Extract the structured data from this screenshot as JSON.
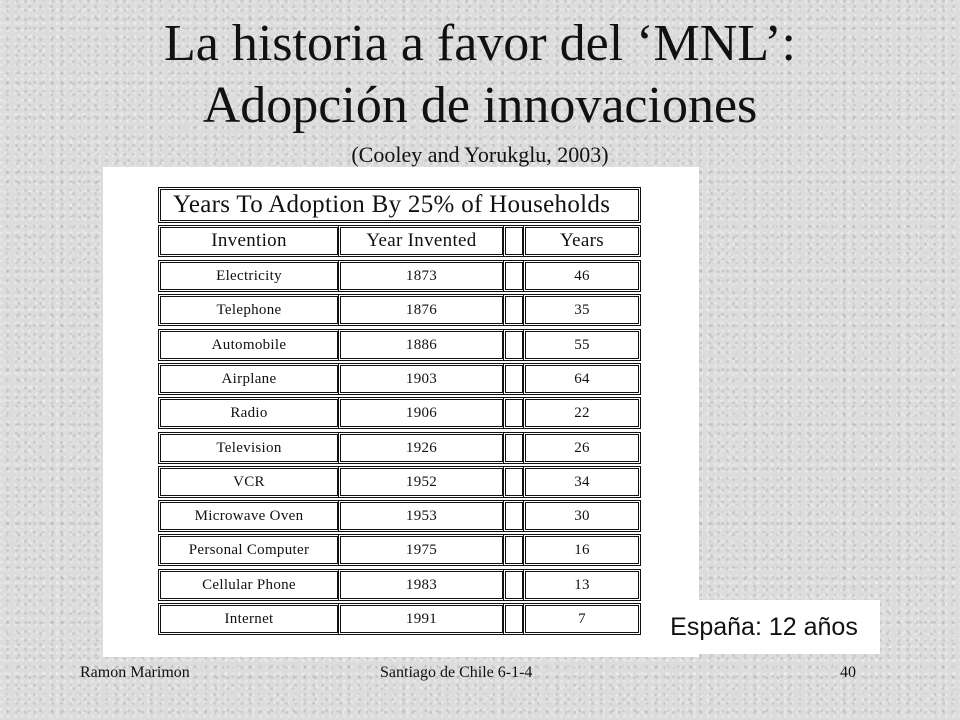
{
  "slide": {
    "title_line1": "La historia a favor del ‘MNL’:",
    "title_line2": "Adopción de  innovaciones",
    "subtitle": "(Cooley and Yorukglu, 2003)",
    "callout": "España: 12 años"
  },
  "table": {
    "title": "Years To Adoption By 25% of Households",
    "headers": [
      "Invention",
      "Year  Invented",
      "",
      "Years"
    ],
    "rows": [
      {
        "invention": "Electricity",
        "year": "1873",
        "years": "46"
      },
      {
        "invention": "Telephone",
        "year": "1876",
        "years": "35"
      },
      {
        "invention": "Automobile",
        "year": "1886",
        "years": "55"
      },
      {
        "invention": "Airplane",
        "year": "1903",
        "years": "64"
      },
      {
        "invention": "Radio",
        "year": "1906",
        "years": "22"
      },
      {
        "invention": "Television",
        "year": "1926",
        "years": "26"
      },
      {
        "invention": "VCR",
        "year": "1952",
        "years": "34"
      },
      {
        "invention": "Microwave Oven",
        "year": "1953",
        "years": "30"
      },
      {
        "invention": "Personal Computer",
        "year": "1975",
        "years": "16"
      },
      {
        "invention": "Cellular Phone",
        "year": "1983",
        "years": "13"
      },
      {
        "invention": "Internet",
        "year": "1991",
        "years": "7"
      }
    ]
  },
  "footer": {
    "author": "Ramon Marimon",
    "place": "Santiago de Chile 6-1-4",
    "page": "40"
  }
}
